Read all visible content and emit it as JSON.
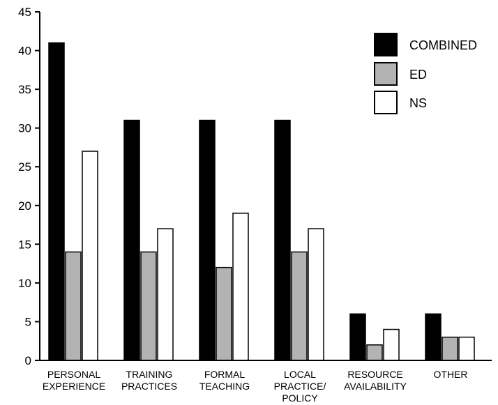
{
  "chart_data": {
    "type": "bar",
    "title": "",
    "xlabel": "",
    "ylabel": "",
    "ylim": [
      0,
      45
    ],
    "yticks": [
      0,
      5,
      10,
      15,
      20,
      25,
      30,
      35,
      40,
      45
    ],
    "grid": false,
    "legend_position": "top-right",
    "categories": [
      [
        "PERSONAL",
        "EXPERIENCE"
      ],
      [
        "TRAINING",
        "PRACTICES"
      ],
      [
        "FORMAL",
        "TEACHING"
      ],
      [
        "LOCAL",
        "PRACTICE/",
        "POLICY"
      ],
      [
        "RESOURCE",
        "AVAILABILITY"
      ],
      [
        "OTHER"
      ]
    ],
    "series": [
      {
        "name": "COMBINED",
        "color": "#000000",
        "values": [
          41,
          31,
          31,
          31,
          6,
          6
        ]
      },
      {
        "name": "ED",
        "color": "#b3b3b3",
        "values": [
          14,
          14,
          12,
          14,
          2,
          3
        ]
      },
      {
        "name": "NS",
        "color": "#ffffff",
        "values": [
          27,
          17,
          19,
          17,
          4,
          3
        ]
      }
    ]
  }
}
